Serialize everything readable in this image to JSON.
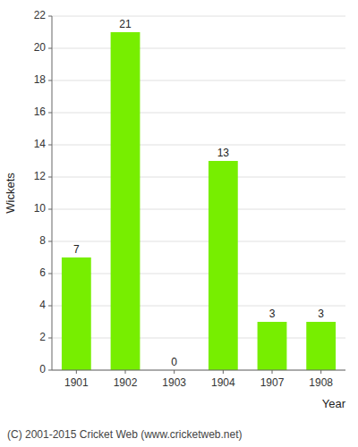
{
  "chart_data": {
    "type": "bar",
    "categories": [
      "1901",
      "1902",
      "1903",
      "1904",
      "1907",
      "1908"
    ],
    "values": [
      7,
      21,
      0,
      13,
      3,
      3
    ],
    "color": "#77ee00",
    "ylabel": "Wickets",
    "xlabel": "Year",
    "annotations": [
      "(C) 2001-2015 Cricket Web (www.cricketweb.net)"
    ],
    "ylim": [
      0,
      22
    ],
    "yticks": [
      0,
      2,
      4,
      6,
      8,
      10,
      12,
      14,
      16,
      18,
      20,
      22
    ],
    "grid": true,
    "data_labels": true
  }
}
